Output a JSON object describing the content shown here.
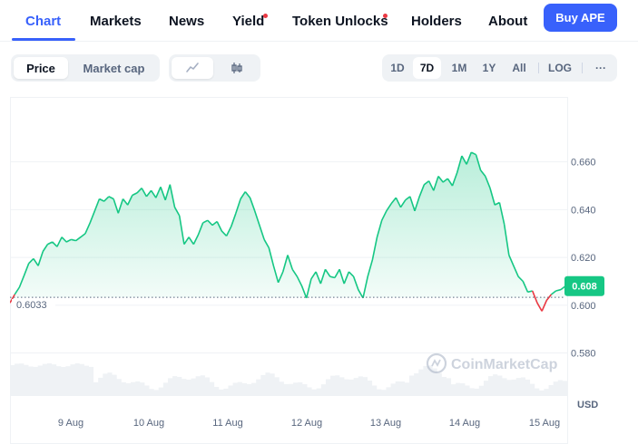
{
  "nav": {
    "tabs": [
      {
        "label": "Chart",
        "active": true
      },
      {
        "label": "Markets"
      },
      {
        "label": "News"
      },
      {
        "label": "Yield",
        "dot": true
      },
      {
        "label": "Token Unlocks",
        "dot": true
      },
      {
        "label": "Holders"
      },
      {
        "label": "About"
      }
    ],
    "buy_label": "Buy APE"
  },
  "toolbar": {
    "metric": [
      "Price",
      "Market cap"
    ],
    "metric_selected": "Price",
    "chart_type_icons": [
      "line-chart-icon",
      "candlestick-icon"
    ],
    "ranges": [
      "1D",
      "7D",
      "1M",
      "1Y",
      "All",
      "LOG"
    ],
    "range_selected": "7D",
    "more_label": "···"
  },
  "chart": {
    "watermark": "CoinMarketCap",
    "currency": "USD",
    "baseline_label": "0.6033",
    "current_price_label": "0.608",
    "colors": {
      "up": "#16c784",
      "down": "#ea3943",
      "badge": "#16c784"
    }
  },
  "chart_data": {
    "type": "line",
    "y_ticks": [
      "0.660",
      "0.640",
      "0.620",
      "0.600",
      "0.580"
    ],
    "x_ticks": [
      "9 Aug",
      "10 Aug",
      "11 Aug",
      "12 Aug",
      "13 Aug",
      "14 Aug",
      "15 Aug"
    ],
    "ylim": [
      0.573,
      0.672
    ],
    "baseline": 0.6033,
    "current": 0.608,
    "series": [
      {
        "values": [
          0.601,
          0.6045,
          0.6075,
          0.6125,
          0.6175,
          0.6195,
          0.6165,
          0.6225,
          0.6255,
          0.6265,
          0.6245,
          0.6285,
          0.6265,
          0.6275,
          0.627,
          0.6285,
          0.63,
          0.6345,
          0.6395,
          0.6445,
          0.6435,
          0.6455,
          0.6445,
          0.6385,
          0.6445,
          0.642,
          0.646,
          0.647,
          0.649,
          0.6455,
          0.648,
          0.645,
          0.6495,
          0.644,
          0.6505,
          0.641,
          0.6375,
          0.6255,
          0.6285,
          0.6255,
          0.6295,
          0.6345,
          0.6355,
          0.6335,
          0.635,
          0.631,
          0.629,
          0.633,
          0.6385,
          0.6445,
          0.6475,
          0.645,
          0.6395,
          0.6335,
          0.6275,
          0.624,
          0.6165,
          0.6095,
          0.614,
          0.621,
          0.615,
          0.612,
          0.608,
          0.603,
          0.611,
          0.614,
          0.609,
          0.615,
          0.612,
          0.6115,
          0.615,
          0.609,
          0.614,
          0.612,
          0.6065,
          0.603,
          0.612,
          0.619,
          0.6285,
          0.6355,
          0.6395,
          0.6425,
          0.645,
          0.641,
          0.644,
          0.6455,
          0.6395,
          0.6455,
          0.6505,
          0.652,
          0.648,
          0.654,
          0.6515,
          0.653,
          0.65,
          0.6555,
          0.6625,
          0.659,
          0.664,
          0.663,
          0.6565,
          0.654,
          0.649,
          0.642,
          0.643,
          0.634,
          0.621,
          0.6165,
          0.612,
          0.61,
          0.6055,
          0.606,
          0.601,
          0.5975,
          0.602,
          0.6045,
          0.606,
          0.6065,
          0.608
        ]
      }
    ]
  }
}
